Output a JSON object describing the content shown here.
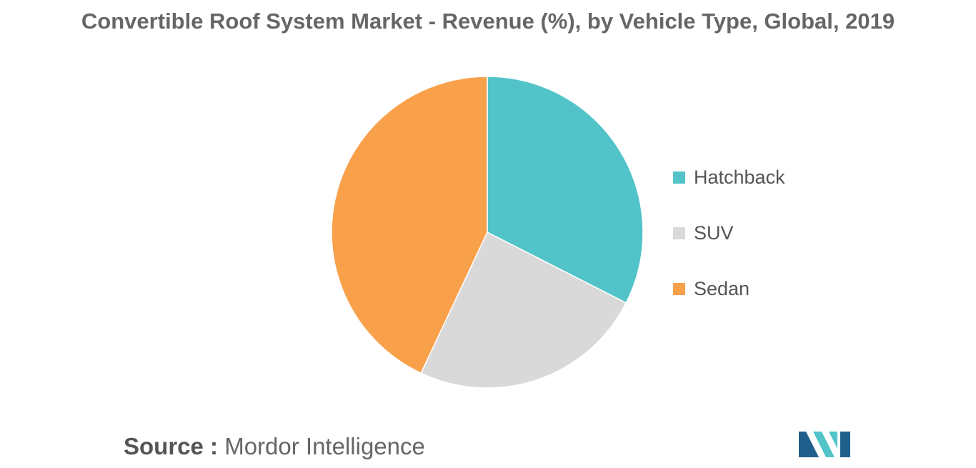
{
  "colors": {
    "hatchback": "#52C4C9",
    "suv": "#D9D9D9",
    "sedan": "#F9A04B",
    "logo_dark": "#1F5F8B",
    "logo_light": "#52C4C9"
  },
  "chart_data": {
    "type": "pie",
    "title": "Convertible Roof System Market - Revenue (%), by Vehicle Type, Global, 2019",
    "categories": [
      "Hatchback",
      "SUV",
      "Sedan"
    ],
    "values": [
      32.5,
      24.5,
      43.0
    ],
    "start_angle": "12 o'clock",
    "direction": "clockwise",
    "legend_position": "right"
  },
  "legend": {
    "items": [
      {
        "label": "Hatchback",
        "color": "#52C4C9"
      },
      {
        "label": "SUV",
        "color": "#D9D9D9"
      },
      {
        "label": "Sedan",
        "color": "#F9A04B"
      }
    ]
  },
  "footer": {
    "source_label": "Source :",
    "source_value": "Mordor Intelligence"
  },
  "logo": {
    "icon": "mordor-intelligence-logo-icon"
  }
}
